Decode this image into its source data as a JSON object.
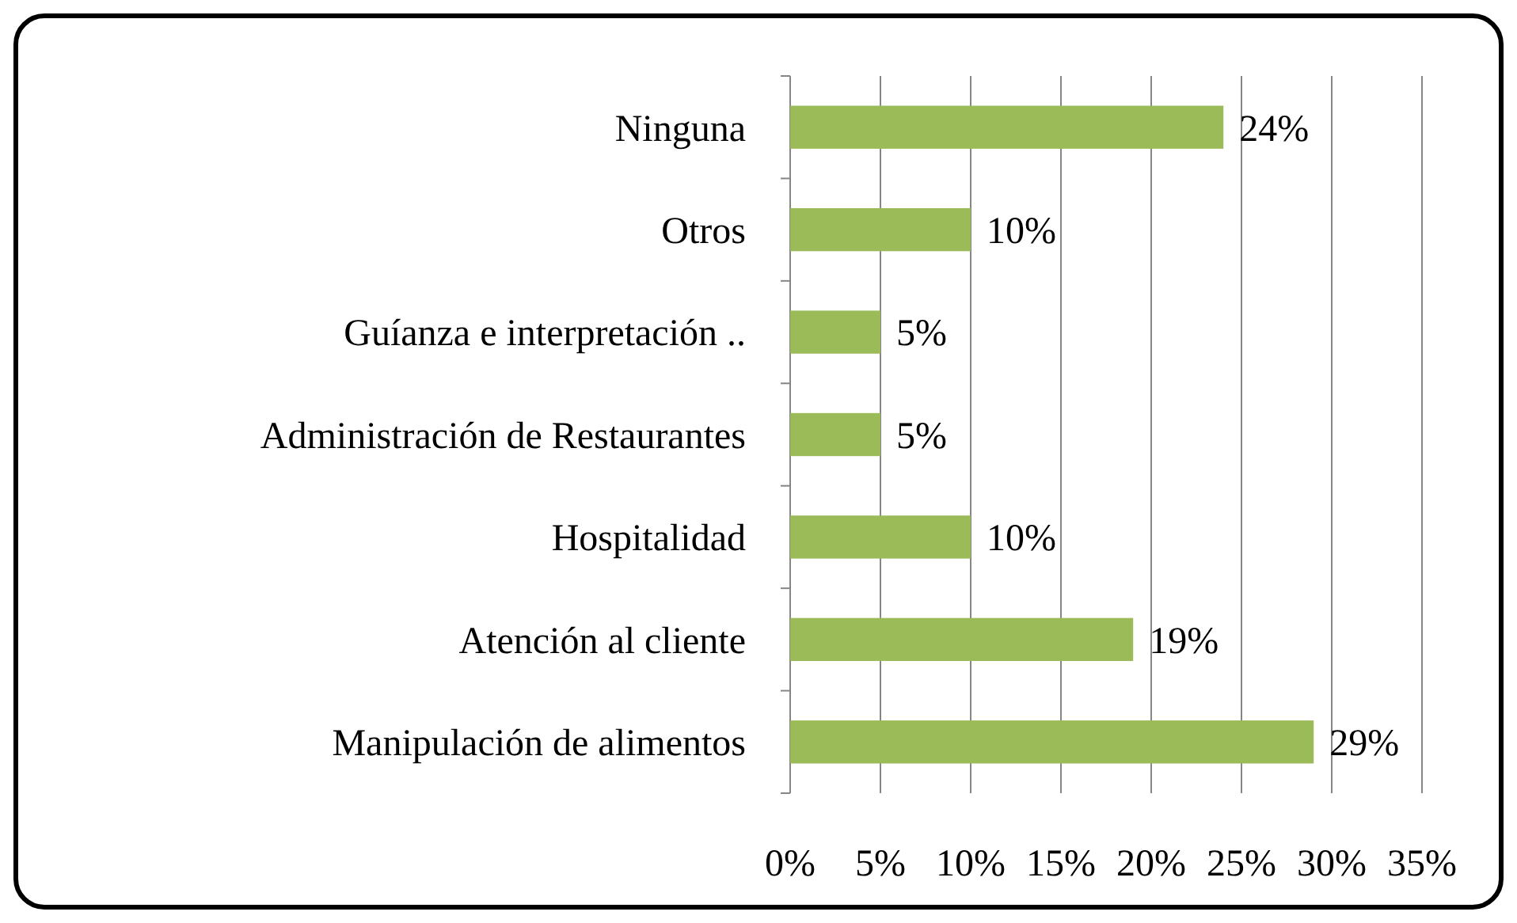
{
  "chart_data": {
    "type": "bar",
    "orientation": "horizontal",
    "categories": [
      "Ninguna",
      "Otros",
      "Guíanza e interpretación ..",
      "Administración de Restaurantes",
      "Hospitalidad",
      "Atención al cliente",
      "Manipulación de alimentos"
    ],
    "values": [
      24,
      10,
      5,
      5,
      10,
      19,
      29
    ],
    "color": "#9bbb59",
    "value_labels": [
      "24%",
      "10%",
      "5%",
      "5%",
      "10%",
      "19%",
      "29%"
    ],
    "xlim": [
      0,
      35
    ],
    "xticks": [
      {
        "value": 0,
        "label": "0%"
      },
      {
        "value": 5,
        "label": "5%"
      },
      {
        "value": 10,
        "label": "10%"
      },
      {
        "value": 15,
        "label": "15%"
      },
      {
        "value": 20,
        "label": "20%"
      },
      {
        "value": 25,
        "label": "25%"
      },
      {
        "value": 30,
        "label": "30%"
      },
      {
        "value": 35,
        "label": "35%"
      }
    ],
    "grid": "x"
  }
}
